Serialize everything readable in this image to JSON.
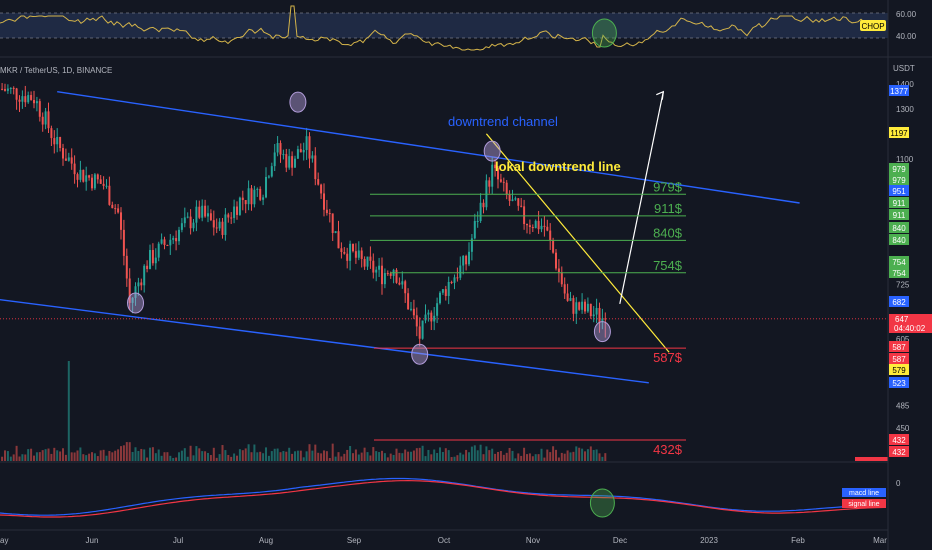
{
  "header": {
    "symbol": "MKR / TetherUS, 1D, BINANCE"
  },
  "indicators": {
    "chop": {
      "badge": "CHOP",
      "levels": [
        "60.00",
        "40.00"
      ]
    },
    "macd": {
      "zero_label": "0",
      "legend": [
        {
          "label": "macd line",
          "color": "#2962ff"
        },
        {
          "label": "signal line",
          "color": "#f23645"
        }
      ]
    }
  },
  "price_axis": {
    "unit": "USDT",
    "ticks": [
      "1400",
      "1300",
      "1100",
      "725",
      "605",
      "485",
      "450"
    ],
    "current_price": "647",
    "countdown": "04:40:02"
  },
  "time_axis": {
    "labels": [
      "ay",
      "Jun",
      "Jul",
      "Aug",
      "Sep",
      "Oct",
      "Nov",
      "Dec",
      "2023",
      "Feb",
      "Mar"
    ]
  },
  "annotations": {
    "channel_label": "downtrend channel",
    "local_line_label": "lokal downtrend line",
    "levels": [
      {
        "label": "979$",
        "price": 979,
        "color": "#4caf50"
      },
      {
        "label": "911$",
        "price": 911,
        "color": "#4caf50"
      },
      {
        "label": "840$",
        "price": 840,
        "color": "#4caf50"
      },
      {
        "label": "754$",
        "price": 754,
        "color": "#4caf50"
      },
      {
        "label": "587$",
        "price": 587,
        "color": "#f23645"
      },
      {
        "label": "432$",
        "price": 432,
        "color": "#f23645"
      }
    ]
  },
  "axis_badges": [
    {
      "text": "1377",
      "color": "#2962ff"
    },
    {
      "text": "1197",
      "color": "#ffeb3b"
    },
    {
      "text": "979",
      "color": "#4caf50"
    },
    {
      "text": "979",
      "color": "#4caf50"
    },
    {
      "text": "951",
      "color": "#2962ff"
    },
    {
      "text": "911",
      "color": "#4caf50"
    },
    {
      "text": "911",
      "color": "#4caf50"
    },
    {
      "text": "840",
      "color": "#4caf50"
    },
    {
      "text": "840",
      "color": "#4caf50"
    },
    {
      "text": "754",
      "color": "#4caf50"
    },
    {
      "text": "754",
      "color": "#4caf50"
    },
    {
      "text": "682",
      "color": "#2962ff"
    },
    {
      "text": "587",
      "color": "#f23645"
    },
    {
      "text": "587",
      "color": "#f23645"
    },
    {
      "text": "579",
      "color": "#ffeb3b"
    },
    {
      "text": "523",
      "color": "#2962ff"
    },
    {
      "text": "432",
      "color": "#f23645"
    },
    {
      "text": "432",
      "color": "#f23645"
    }
  ],
  "chart_data": {
    "type": "candlestick",
    "title": "",
    "xlabel": "",
    "ylabel": "",
    "log_scale": true,
    "ylim": [
      450,
      1420
    ],
    "x_range": [
      "2022-05-01",
      "2023-03-01"
    ],
    "anchors": [
      {
        "date": "2022-05-01",
        "close": 1390
      },
      {
        "date": "2022-05-12",
        "close": 1350
      },
      {
        "date": "2022-05-20",
        "close": 1150
      },
      {
        "date": "2022-05-28",
        "close": 1050
      },
      {
        "date": "2022-06-05",
        "close": 1010
      },
      {
        "date": "2022-06-10",
        "close": 920
      },
      {
        "date": "2022-06-14",
        "close": 680
      },
      {
        "date": "2022-06-20",
        "close": 780
      },
      {
        "date": "2022-06-30",
        "close": 860
      },
      {
        "date": "2022-07-08",
        "close": 920
      },
      {
        "date": "2022-07-15",
        "close": 870
      },
      {
        "date": "2022-07-22",
        "close": 960
      },
      {
        "date": "2022-07-30",
        "close": 1000
      },
      {
        "date": "2022-08-03",
        "close": 1140
      },
      {
        "date": "2022-08-08",
        "close": 1090
      },
      {
        "date": "2022-08-14",
        "close": 1150
      },
      {
        "date": "2022-08-19",
        "close": 990
      },
      {
        "date": "2022-08-25",
        "close": 830
      },
      {
        "date": "2022-09-02",
        "close": 780
      },
      {
        "date": "2022-09-09",
        "close": 750
      },
      {
        "date": "2022-09-13",
        "close": 770
      },
      {
        "date": "2022-09-18",
        "close": 680
      },
      {
        "date": "2022-09-22",
        "close": 610
      },
      {
        "date": "2022-09-26",
        "close": 660
      },
      {
        "date": "2022-10-03",
        "close": 740
      },
      {
        "date": "2022-10-08",
        "close": 780
      },
      {
        "date": "2022-10-12",
        "close": 910
      },
      {
        "date": "2022-10-17",
        "close": 1060
      },
      {
        "date": "2022-10-22",
        "close": 970
      },
      {
        "date": "2022-10-28",
        "close": 900
      },
      {
        "date": "2022-11-04",
        "close": 880
      },
      {
        "date": "2022-11-08",
        "close": 780
      },
      {
        "date": "2022-11-12",
        "close": 680
      },
      {
        "date": "2022-11-18",
        "close": 665
      },
      {
        "date": "2022-11-25",
        "close": 647
      }
    ],
    "ohlc_last": {
      "date": "2022-11-25",
      "close": 647
    },
    "channel_upper": [
      {
        "date": "2022-05-20",
        "price": 1377
      },
      {
        "date": "2023-01-31",
        "price": 951
      }
    ],
    "channel_lower": [
      {
        "date": "2022-04-18",
        "price": 700
      },
      {
        "date": "2022-12-10",
        "price": 523
      }
    ],
    "local_downtrend": [
      {
        "date": "2022-10-15",
        "price": 1197
      },
      {
        "date": "2022-12-17",
        "price": 579
      }
    ],
    "projection": [
      {
        "date": "2022-11-30",
        "price": 680
      },
      {
        "date": "2022-12-15",
        "price": 1377
      }
    ],
    "volume_spike": {
      "date": "2022-05-24"
    },
    "markers": [
      {
        "date": "2022-06-16",
        "price": 682,
        "indicator": false
      },
      {
        "date": "2022-08-11",
        "price": 1330,
        "indicator": false
      },
      {
        "date": "2022-09-22",
        "price": 575,
        "indicator": false
      },
      {
        "date": "2022-10-17",
        "price": 1130,
        "indicator": false
      },
      {
        "date": "2022-11-24",
        "price": 620,
        "indicator": false
      },
      {
        "date": "2022-11-24",
        "chop": 42,
        "indicator": "chop"
      },
      {
        "date": "2022-11-24",
        "macd": -8,
        "indicator": "macd"
      }
    ]
  }
}
